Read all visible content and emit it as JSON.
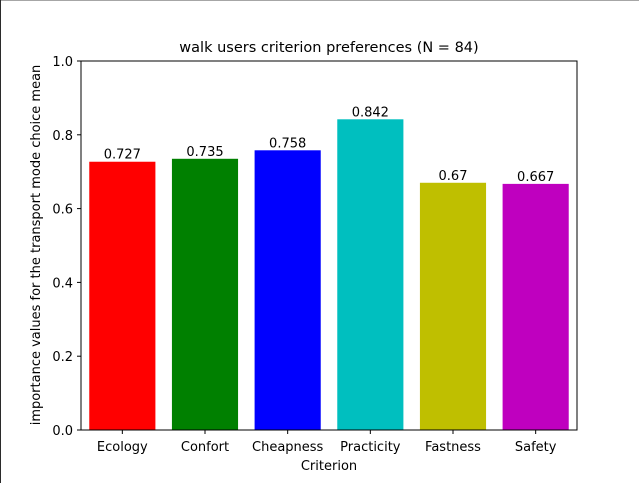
{
  "chart_data": {
    "type": "bar",
    "title": "walk users criterion preferences (N = 84)",
    "xlabel": "Criterion",
    "ylabel": "importance values for the transport mode choice mean",
    "categories": [
      "Ecology",
      "Confort",
      "Cheapness",
      "Practicity",
      "Fastness",
      "Safety"
    ],
    "values": [
      0.727,
      0.735,
      0.758,
      0.842,
      0.67,
      0.667
    ],
    "value_labels": [
      "0.727",
      "0.735",
      "0.758",
      "0.842",
      "0.67",
      "0.667"
    ],
    "colors": [
      "#ff0000",
      "#008000",
      "#0000ff",
      "#00bfbf",
      "#bfbf00",
      "#bf00bf"
    ],
    "ylim": [
      0,
      1.0
    ],
    "yticks": [
      0.0,
      0.2,
      0.4,
      0.6,
      0.8,
      1.0
    ],
    "ytick_labels": [
      "0.0",
      "0.2",
      "0.4",
      "0.6",
      "0.8",
      "1.0"
    ],
    "grid": false,
    "legend": "none"
  }
}
